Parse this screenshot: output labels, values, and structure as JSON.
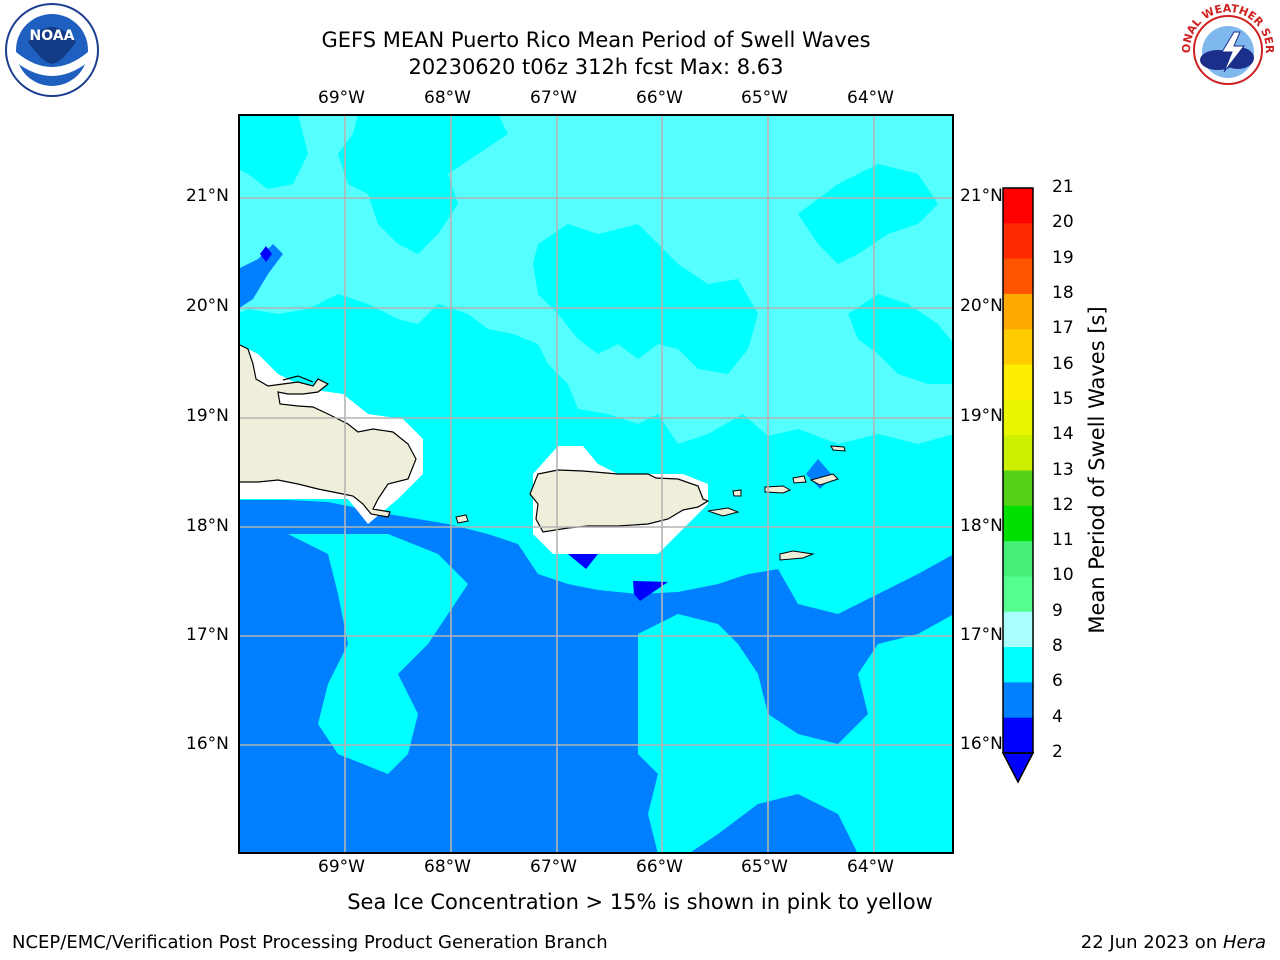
{
  "title": {
    "line1": "GEFS MEAN Puerto Rico Mean Period of Swell Waves",
    "line2": "20230620 t06z 312h fcst   Max: 8.63"
  },
  "map": {
    "lon_labels": [
      "69°W",
      "68°W",
      "67°W",
      "66°W",
      "65°W",
      "64°W"
    ],
    "lat_labels": [
      "21°N",
      "20°N",
      "19°N",
      "18°N",
      "17°N",
      "16°N"
    ]
  },
  "colorbar": {
    "label": "Mean Period of Swell Waves [s]",
    "ticks": [
      "21",
      "20",
      "19",
      "18",
      "17",
      "16",
      "15",
      "14",
      "13",
      "12",
      "11",
      "10",
      "9",
      "8",
      "6",
      "4",
      "2"
    ],
    "colors": [
      "#ff0000",
      "#ff2a00",
      "#ff5500",
      "#ff8000",
      "#ffa800",
      "#ffcc00",
      "#ffee00",
      "#eaf500",
      "#ccf000",
      "#a6e600",
      "#55d31a",
      "#00e000",
      "#44ee77",
      "#55ff8f",
      "#aaffff",
      "#55ffff",
      "#00ffff",
      "#0080ff",
      "#0000ff"
    ],
    "over_color": "#ff0000"
  },
  "sea_ice_note": "Sea Ice Concentration > 15% is shown in pink to yellow",
  "footer": {
    "left": "NCEP/EMC/Verification Post Processing Product Generation Branch",
    "right_date": "22 Jun 2023 on ",
    "right_host": "Hera"
  },
  "logos": {
    "noaa": "NOAA",
    "nws": "NATIONAL WEATHER SERVICE"
  }
}
